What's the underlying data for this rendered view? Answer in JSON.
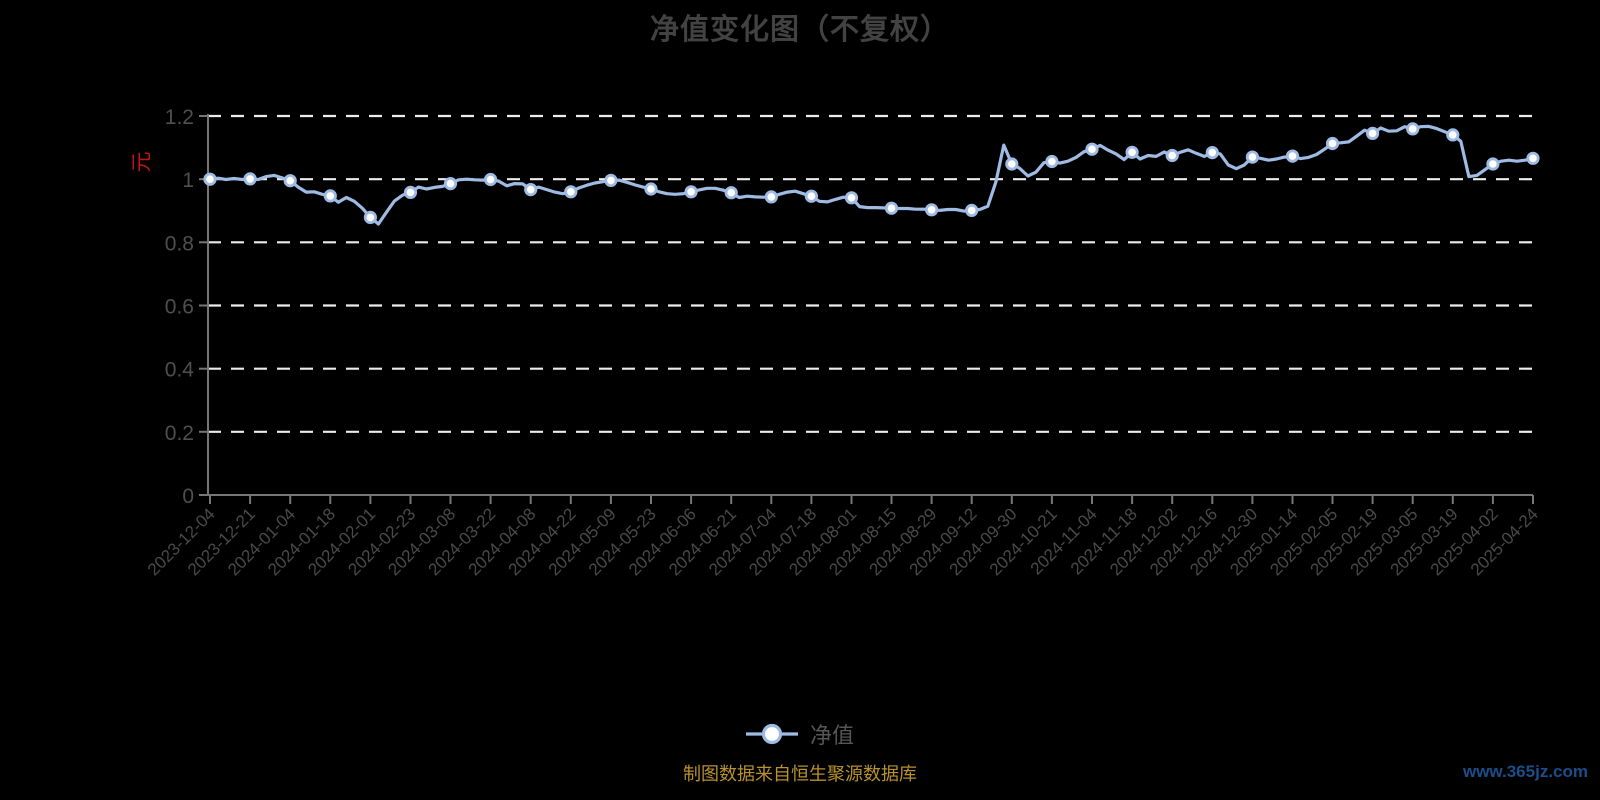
{
  "chart_data": {
    "type": "line",
    "title": "净值变化图（不复权）",
    "source_note": "制图数据来自恒生聚源数据库",
    "watermark": "www.365jz.com",
    "background_color": "#000000",
    "y_axis": {
      "name": "元",
      "name_color": "#c21414",
      "min": 0,
      "max": 1.2,
      "interval": 0.2,
      "tick_labels": [
        "0",
        "0.2",
        "0.4",
        "0.6",
        "0.8",
        "1",
        "1.2"
      ],
      "gridline_style": "dashed",
      "gridline_color": "#ececec",
      "axis_color": "#767676",
      "label_color": "#4f4f4f"
    },
    "x_axis": {
      "label_rotation_deg": 45,
      "label_color": "#4a4a4a",
      "categories": [
        "2023-12-04",
        "2023-12-21",
        "2024-01-04",
        "2024-01-18",
        "2024-02-01",
        "2024-02-23",
        "2024-03-08",
        "2024-03-22",
        "2024-04-08",
        "2024-04-22",
        "2024-05-09",
        "2024-05-23",
        "2024-06-06",
        "2024-06-21",
        "2024-07-04",
        "2024-07-18",
        "2024-08-01",
        "2024-08-15",
        "2024-08-29",
        "2024-09-12",
        "2024-09-30",
        "2024-10-21",
        "2024-11-04",
        "2024-11-18",
        "2024-12-02",
        "2024-12-16",
        "2024-12-30",
        "2025-01-14",
        "2025-02-05",
        "2025-02-19",
        "2025-03-05",
        "2025-03-19",
        "2025-04-02",
        "2025-04-24"
      ]
    },
    "legend_position": "bottom-center",
    "series": [
      {
        "name": "净值",
        "type": "line",
        "color": "#9fbbe4",
        "marker": {
          "fill": "#ffffff",
          "border": "#9fbbe4"
        },
        "values": [
          1.0,
          1.001,
          0.995,
          0.947,
          0.879,
          0.958,
          0.986,
          0.999,
          0.967,
          0.96,
          0.996,
          0.969,
          0.96,
          0.957,
          0.944,
          0.946,
          0.941,
          0.908,
          0.903,
          0.901,
          1.048,
          1.056,
          1.095,
          1.085,
          1.075,
          1.084,
          1.07,
          1.073,
          1.113,
          1.145,
          1.159,
          1.14,
          1.048,
          1.066
        ],
        "dense_per_interval": 5,
        "dense_values": [
          1.0,
          1.003,
          0.999,
          1.002,
          0.999,
          1.001,
          0.999,
          1.008,
          1.012,
          1.004,
          0.995,
          0.975,
          0.959,
          0.96,
          0.952,
          0.947,
          0.927,
          0.942,
          0.93,
          0.908,
          0.879,
          0.858,
          0.895,
          0.931,
          0.949,
          0.958,
          0.975,
          0.969,
          0.974,
          0.977,
          0.986,
          0.998,
          1.0,
          0.998,
          0.997,
          0.999,
          0.994,
          0.979,
          0.986,
          0.985,
          0.967,
          0.975,
          0.967,
          0.959,
          0.954,
          0.96,
          0.972,
          0.981,
          0.988,
          0.992,
          0.996,
          0.997,
          0.99,
          0.982,
          0.975,
          0.969,
          0.96,
          0.954,
          0.952,
          0.954,
          0.96,
          0.966,
          0.971,
          0.971,
          0.965,
          0.957,
          0.942,
          0.946,
          0.944,
          0.943,
          0.944,
          0.952,
          0.959,
          0.962,
          0.954,
          0.946,
          0.93,
          0.928,
          0.936,
          0.943,
          0.941,
          0.913,
          0.91,
          0.91,
          0.909,
          0.908,
          0.907,
          0.907,
          0.905,
          0.905,
          0.903,
          0.901,
          0.904,
          0.904,
          0.899,
          0.901,
          0.904,
          0.914,
          0.99,
          1.108,
          1.048,
          1.034,
          1.01,
          1.022,
          1.052,
          1.056,
          1.051,
          1.057,
          1.069,
          1.087,
          1.095,
          1.107,
          1.092,
          1.08,
          1.062,
          1.085,
          1.064,
          1.075,
          1.072,
          1.086,
          1.075,
          1.085,
          1.093,
          1.082,
          1.072,
          1.084,
          1.08,
          1.045,
          1.033,
          1.045,
          1.07,
          1.066,
          1.06,
          1.064,
          1.07,
          1.073,
          1.065,
          1.069,
          1.078,
          1.095,
          1.113,
          1.115,
          1.118,
          1.136,
          1.155,
          1.145,
          1.162,
          1.152,
          1.153,
          1.166,
          1.159,
          1.166,
          1.167,
          1.16,
          1.15,
          1.14,
          1.12,
          1.008,
          1.012,
          1.03,
          1.048,
          1.057,
          1.06,
          1.057,
          1.06,
          1.066
        ]
      }
    ]
  }
}
